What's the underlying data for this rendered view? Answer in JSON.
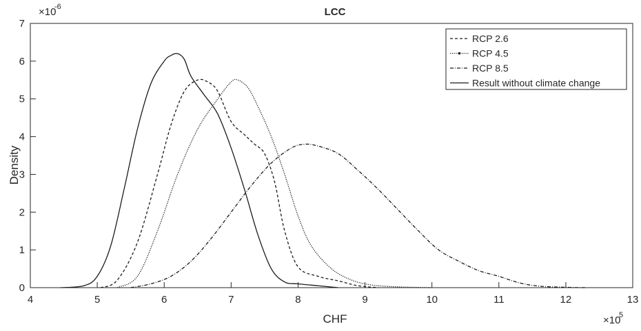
{
  "chart_data": {
    "type": "line",
    "title": "LCC",
    "xlabel": "CHF",
    "ylabel": "Density",
    "x_exponent": "×10",
    "x_exponent_power": "5",
    "y_exponent": "×10",
    "y_exponent_power": "-6",
    "xlim": [
      4,
      13
    ],
    "ylim": [
      0,
      7
    ],
    "x_ticks": [
      4,
      5,
      6,
      7,
      8,
      9,
      10,
      11,
      12,
      13
    ],
    "y_ticks": [
      0,
      1,
      2,
      3,
      4,
      5,
      6,
      7
    ],
    "x_tick_labels": [
      "4",
      "5",
      "6",
      "7",
      "8",
      "9",
      "10",
      "11",
      "12",
      "13"
    ],
    "y_tick_labels": [
      "0",
      "1",
      "2",
      "3",
      "4",
      "5",
      "6",
      "7"
    ],
    "legend_position": "top-right",
    "grid": false,
    "series": [
      {
        "name": "RCP 2.6",
        "style": "dashed",
        "x": [
          5.05,
          5.3,
          5.6,
          5.9,
          6.1,
          6.3,
          6.5,
          6.65,
          6.8,
          7.0,
          7.2,
          7.35,
          7.5,
          7.65,
          7.8,
          8.0,
          8.3,
          8.6,
          8.9,
          9.2
        ],
        "y": [
          0.0,
          0.2,
          1.2,
          3.0,
          4.3,
          5.2,
          5.5,
          5.45,
          5.2,
          4.4,
          4.05,
          3.8,
          3.55,
          2.8,
          1.5,
          0.55,
          0.3,
          0.18,
          0.05,
          0.0
        ]
      },
      {
        "name": "RCP 4.5",
        "style": "dotted-marker",
        "x": [
          5.3,
          5.6,
          5.9,
          6.2,
          6.5,
          6.8,
          7.0,
          7.1,
          7.25,
          7.4,
          7.6,
          7.8,
          8.0,
          8.2,
          8.5,
          8.8,
          9.1,
          9.5,
          10.0
        ],
        "y": [
          0.0,
          0.3,
          1.5,
          3.0,
          4.2,
          5.0,
          5.45,
          5.5,
          5.3,
          4.8,
          4.0,
          3.0,
          1.9,
          1.1,
          0.5,
          0.2,
          0.07,
          0.02,
          0.0
        ]
      },
      {
        "name": "RCP 8.5",
        "style": "dash-dot",
        "x": [
          5.5,
          5.8,
          6.1,
          6.4,
          6.7,
          7.0,
          7.3,
          7.6,
          7.9,
          8.1,
          8.3,
          8.6,
          8.9,
          9.2,
          9.5,
          9.8,
          10.1,
          10.4,
          10.7,
          11.0,
          11.3,
          11.6,
          12.0,
          12.3
        ],
        "y": [
          0.0,
          0.1,
          0.3,
          0.7,
          1.3,
          2.0,
          2.7,
          3.3,
          3.7,
          3.8,
          3.75,
          3.55,
          3.1,
          2.6,
          2.05,
          1.5,
          1.0,
          0.7,
          0.45,
          0.3,
          0.13,
          0.04,
          0.01,
          0.0
        ]
      },
      {
        "name": "Result without climate change",
        "style": "solid",
        "x": [
          4.45,
          4.8,
          5.0,
          5.2,
          5.4,
          5.6,
          5.8,
          6.0,
          6.1,
          6.2,
          6.3,
          6.4,
          6.6,
          6.8,
          7.0,
          7.2,
          7.4,
          7.6,
          7.8,
          8.0,
          8.3,
          8.6
        ],
        "y": [
          0.0,
          0.05,
          0.3,
          1.1,
          2.6,
          4.2,
          5.4,
          6.0,
          6.15,
          6.2,
          6.05,
          5.6,
          5.1,
          4.6,
          3.7,
          2.6,
          1.4,
          0.5,
          0.15,
          0.1,
          0.05,
          0.0
        ]
      }
    ]
  }
}
